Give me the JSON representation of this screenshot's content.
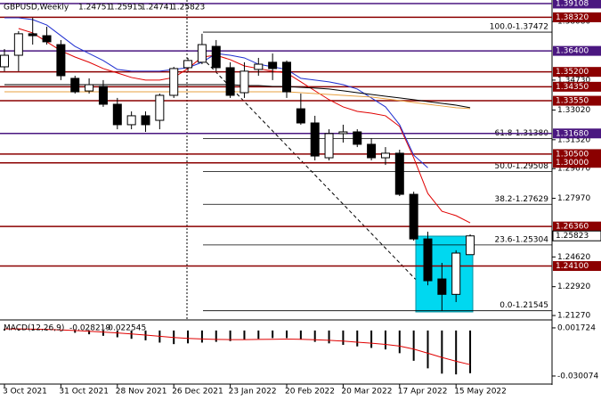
{
  "chart_data": [
    {
      "type": "candlestick",
      "title": "GBPUSD,Weekly",
      "categories": [
        "3 Oct 2021",
        null,
        null,
        null,
        "31 Oct 2021",
        null,
        null,
        null,
        "28 Nov 2021",
        null,
        null,
        null,
        "26 Dec 2021",
        null,
        null,
        null,
        "23 Jan 2022",
        null,
        null,
        null,
        "20 Feb 2022",
        null,
        null,
        null,
        "20 Mar 2022",
        null,
        null,
        null,
        "17 Apr 2022",
        null,
        null,
        null,
        "15 May 2022",
        null
      ],
      "open": [
        1.3549,
        1.3615,
        1.3738,
        1.3727,
        1.3676,
        1.3483,
        1.3411,
        1.3437,
        1.3335,
        1.3218,
        1.3269,
        1.3243,
        1.3386,
        1.3544,
        1.3575,
        1.3666,
        1.3544,
        1.3401,
        1.3534,
        1.3575,
        1.3575,
        1.3309,
        1.3228,
        1.3029,
        1.3167,
        1.3177,
        1.3106,
        1.3029,
        1.3055,
        1.282,
        1.2565,
        1.2336,
        1.2248,
        1.24751
      ],
      "high": [
        1.3651,
        1.3753,
        1.3829,
        1.3778,
        1.3702,
        1.3498,
        1.3483,
        1.3473,
        1.3371,
        1.3294,
        1.3294,
        1.3396,
        1.3549,
        1.36,
        1.3738,
        1.3702,
        1.3575,
        1.3575,
        1.36,
        1.3625,
        1.3585,
        1.3396,
        1.3269,
        1.3192,
        1.3218,
        1.3192,
        1.3141,
        1.309,
        1.3075,
        1.2835,
        1.2606,
        1.2428,
        1.25,
        1.25915
      ],
      "low": [
        1.3524,
        1.3524,
        1.3676,
        1.3676,
        1.3473,
        1.3396,
        1.3396,
        1.332,
        1.3192,
        1.3192,
        1.3177,
        1.3192,
        1.3371,
        1.3524,
        1.3564,
        1.3524,
        1.3371,
        1.3371,
        1.3498,
        1.3473,
        1.3371,
        1.3218,
        1.3014,
        1.3014,
        1.3116,
        1.309,
        1.3014,
        1.2988,
        1.281,
        1.2555,
        1.23,
        1.2155,
        1.2204,
        1.24741
      ],
      "close": [
        1.3615,
        1.3738,
        1.3727,
        1.3692,
        1.3498,
        1.3406,
        1.3447,
        1.3335,
        1.3218,
        1.3269,
        1.3218,
        1.3386,
        1.3539,
        1.3585,
        1.3676,
        1.3544,
        1.3386,
        1.3524,
        1.3564,
        1.3539,
        1.3406,
        1.3228,
        1.3039,
        1.3167,
        1.3177,
        1.3106,
        1.3029,
        1.3055,
        1.282,
        1.2565,
        1.2326,
        1.2248,
        1.2484,
        1.25823
      ],
      "up_color": "#ffffff",
      "down_color": "#000000",
      "ylim": [
        1.3931,
        1.2107
      ],
      "yticks": [
        {
          "value": 1.3808,
          "label": "1.38080"
        },
        {
          "value": 1.3473,
          "label": "1.34730"
        },
        {
          "value": 1.3302,
          "label": "1.33020"
        },
        {
          "value": 1.3132,
          "label": "1.31320"
        },
        {
          "value": 1.2967,
          "label": "1.29670"
        },
        {
          "value": 1.2797,
          "label": "1.27970"
        },
        {
          "value": 1.2462,
          "label": "1.24620"
        },
        {
          "value": 1.2292,
          "label": "1.22920"
        },
        {
          "value": 1.2127,
          "label": "1.21270"
        }
      ],
      "levels": [
        {
          "value": 1.39108,
          "label": "1.39108",
          "color": "#4a1780"
        },
        {
          "value": 1.3832,
          "label": "1.38320",
          "color": "#8b0000"
        },
        {
          "value": 1.364,
          "label": "1.36400",
          "color": "#4a1780"
        },
        {
          "value": 1.352,
          "label": "1.35200",
          "color": "#8b0000"
        },
        {
          "value": 1.3435,
          "label": "1.34350",
          "color": "#8b0000"
        },
        {
          "value": 1.3355,
          "label": "1.33550",
          "color": "#8b0000"
        },
        {
          "value": 1.3168,
          "label": "1.31680",
          "color": "#4a1780"
        },
        {
          "value": 1.305,
          "label": "1.30500",
          "color": "#8b0000"
        },
        {
          "value": 1.3,
          "label": "1.30000",
          "color": "#8b0000"
        },
        {
          "value": 1.2636,
          "label": "1.26360",
          "color": "#8b0000"
        },
        {
          "value": 1.241,
          "label": "1.24100",
          "color": "#8b0000"
        }
      ],
      "fib_levels": [
        {
          "value": 1.37472,
          "label": "100.0-1.37472"
        },
        {
          "value": 1.3138,
          "label": "61.8-1.31380"
        },
        {
          "value": 1.29508,
          "label": "50.0-1.29508"
        },
        {
          "value": 1.27629,
          "label": "38.2-1.27629"
        },
        {
          "value": 1.25304,
          "label": "23.6-1.25304"
        },
        {
          "value": 1.21545,
          "label": "0.0-1.21545"
        }
      ],
      "overlays": [
        {
          "color": "#e00000",
          "values": [
            null,
            1.3768,
            1.3743,
            1.3692,
            1.3641,
            1.3605,
            1.3575,
            1.3539,
            1.3514,
            1.3488,
            1.3473,
            1.3473,
            1.3488,
            1.3539,
            1.3605,
            1.3615,
            1.359,
            1.3554,
            1.3539,
            1.3524,
            1.3514,
            1.3463,
            1.3412,
            1.3361,
            1.332,
            1.3294,
            1.3284,
            1.3269,
            1.3208,
            1.3029,
            1.2825,
            1.2723,
            1.2698,
            1.2657
          ]
        },
        {
          "color": "#1f2fd0",
          "values": [
            1.3829,
            1.3829,
            1.3819,
            1.3788,
            1.3727,
            1.3666,
            1.3625,
            1.3585,
            1.3534,
            1.3524,
            1.3524,
            1.3524,
            1.3534,
            1.3544,
            1.3575,
            1.3625,
            1.3615,
            1.36,
            1.3564,
            1.3549,
            1.3534,
            1.3483,
            1.3473,
            1.3463,
            1.3447,
            1.3422,
            1.3371,
            1.332,
            1.3218,
            1.3044,
            1.2972,
            null,
            null,
            null
          ]
        },
        {
          "color": "#000000",
          "values": [
            1.3447,
            1.3447,
            1.3447,
            1.3447,
            1.3447,
            1.3447,
            1.3447,
            1.3447,
            1.3447,
            1.3447,
            1.3447,
            1.3447,
            1.3447,
            1.3447,
            1.3447,
            1.3447,
            1.3447,
            1.3442,
            1.3442,
            1.3437,
            1.3437,
            1.3432,
            1.3427,
            1.3422,
            1.3412,
            1.3401,
            1.3391,
            1.3381,
            1.3371,
            1.3361,
            1.335,
            1.334,
            1.333,
            1.3315
          ]
        },
        {
          "color": "#e8a040",
          "values": [
            1.3406,
            1.3406,
            1.3406,
            1.3406,
            1.3406,
            1.3406,
            1.3406,
            1.3406,
            1.3406,
            1.3406,
            1.3406,
            1.3406,
            1.3406,
            1.3406,
            1.3406,
            1.3406,
            1.3406,
            1.3406,
            1.3406,
            1.3406,
            1.3406,
            1.3401,
            1.3396,
            1.3391,
            1.3386,
            1.3381,
            1.3376,
            1.3366,
            1.3356,
            1.3345,
            1.3335,
            1.3325,
            1.3315,
            1.331
          ]
        }
      ]
    },
    {
      "type": "macd",
      "title": "MACD(12,26,9)",
      "series": [
        {
          "style": "histogram",
          "color": "#000000",
          "values": [
            0.001,
            0.0012,
            0.001,
            0.0005,
            -0.0005,
            -0.0015,
            -0.0025,
            -0.0035,
            -0.0045,
            -0.0055,
            -0.0065,
            -0.008,
            -0.009,
            -0.0085,
            -0.008,
            -0.0075,
            -0.007,
            -0.006,
            -0.0055,
            -0.005,
            -0.005,
            -0.006,
            -0.0075,
            -0.0085,
            -0.0095,
            -0.0105,
            -0.0115,
            -0.0125,
            -0.015,
            -0.02,
            -0.025,
            -0.0285,
            -0.029,
            -0.028219
          ]
        },
        {
          "style": "line",
          "color": "#e00000",
          "values": [
            0.001,
            0.001,
            0.0009,
            0.0007,
            0.0004,
            0.0,
            -0.0005,
            -0.001,
            -0.0016,
            -0.0023,
            -0.003,
            -0.0038,
            -0.0046,
            -0.0052,
            -0.0056,
            -0.0059,
            -0.006,
            -0.006,
            -0.0059,
            -0.0058,
            -0.0057,
            -0.0058,
            -0.0061,
            -0.0065,
            -0.007,
            -0.0077,
            -0.0084,
            -0.0092,
            -0.0103,
            -0.0123,
            -0.015,
            -0.0178,
            -0.0203,
            -0.022545
          ]
        }
      ],
      "ylim": [
        0.0064,
        -0.0348
      ],
      "yticks": [
        0.001724,
        -0.030074
      ]
    }
  ]
}
